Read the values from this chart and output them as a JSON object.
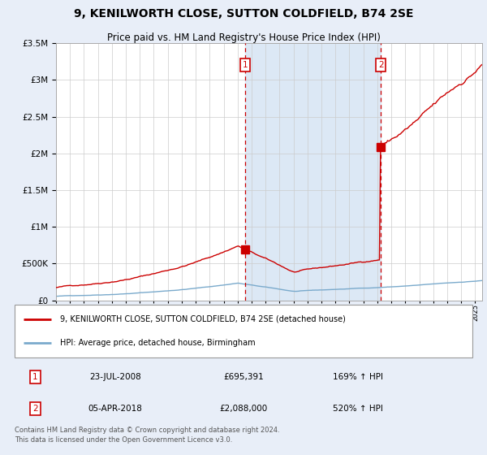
{
  "title": "9, KENILWORTH CLOSE, SUTTON COLDFIELD, B74 2SE",
  "subtitle": "Price paid vs. HM Land Registry's House Price Index (HPI)",
  "property_label": "9, KENILWORTH CLOSE, SUTTON COLDFIELD, B74 2SE (detached house)",
  "hpi_label": "HPI: Average price, detached house, Birmingham",
  "sale1_date": "23-JUL-2008",
  "sale1_price": 695391,
  "sale1_hpi": "169% ↑ HPI",
  "sale1_year": 2008.55,
  "sale1_num": "1",
  "sale2_date": "05-APR-2018",
  "sale2_price": 2088000,
  "sale2_hpi": "520% ↑ HPI",
  "sale2_year": 2018.26,
  "sale2_num": "2",
  "footnote": "Contains HM Land Registry data © Crown copyright and database right 2024.\nThis data is licensed under the Open Government Licence v3.0.",
  "ylim": [
    0,
    3500000
  ],
  "xlim_start": 1995.0,
  "xlim_end": 2025.5,
  "background_color": "#e8eef8",
  "plot_bg_color": "#ffffff",
  "shaded_region_color": "#dce8f5",
  "red_line_color": "#cc0000",
  "blue_line_color": "#7aaacc",
  "vline_color": "#cc0000",
  "marker_box_color": "#cc0000",
  "title_color": "#000000",
  "grid_color": "#cccccc"
}
